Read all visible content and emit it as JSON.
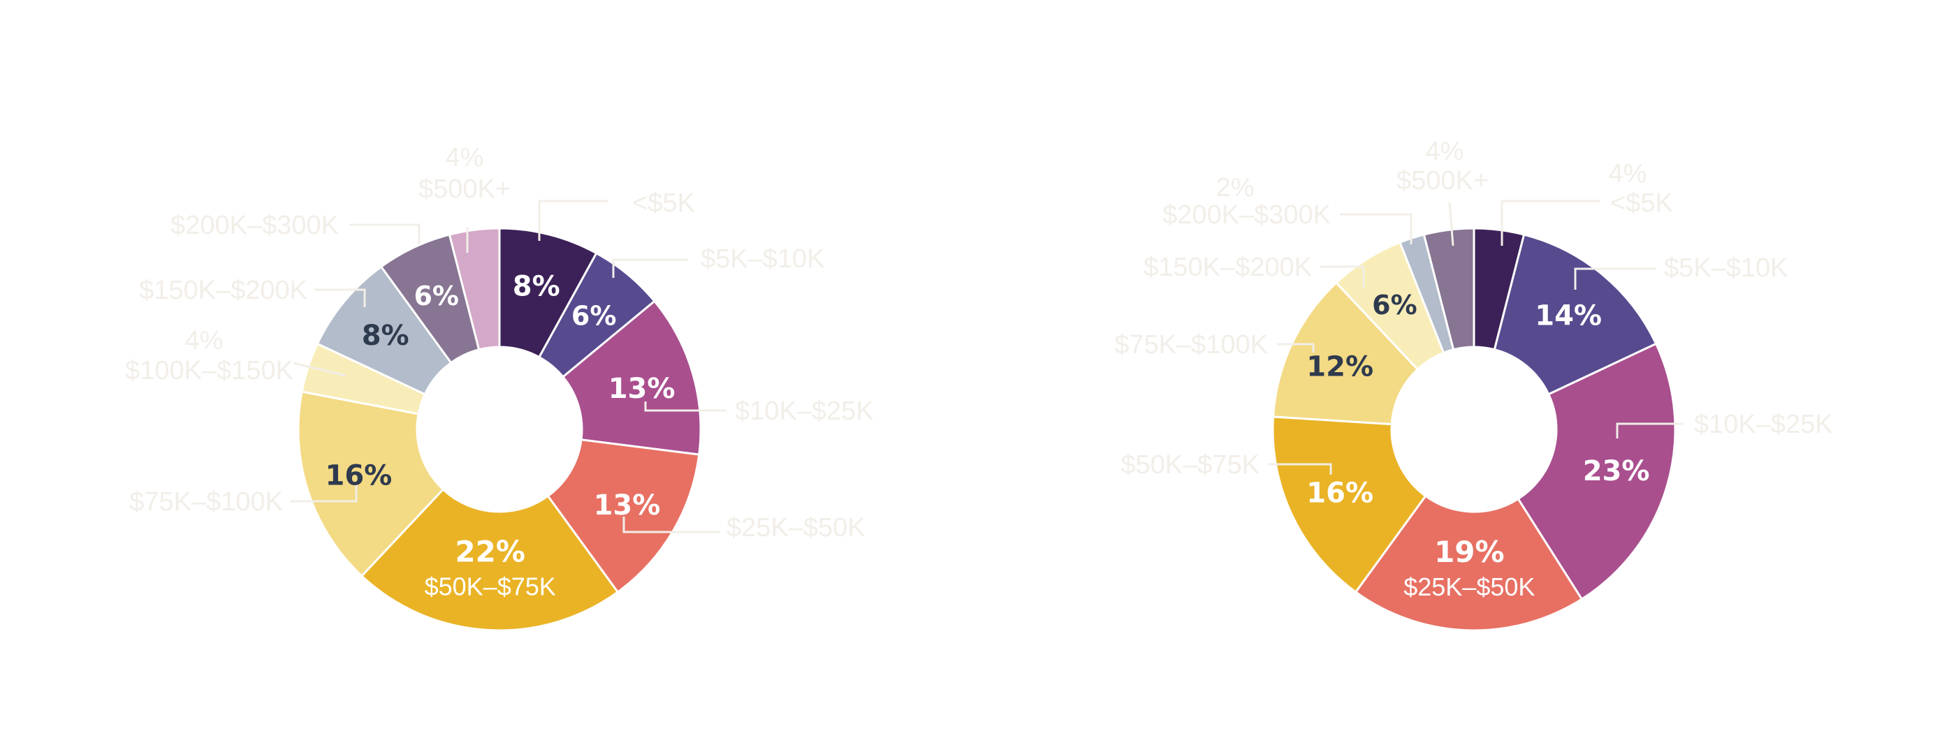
{
  "chart_data": [
    {
      "type": "donut",
      "categories": [
        "<$5K",
        "$5K–$10K",
        "$10K–$25K",
        "$25K–$50K",
        "$50K–$75K",
        "$75K–$100K",
        "$100K–$150K",
        "$150K–$200K",
        "$200K–$300K",
        "$500K+"
      ],
      "values": [
        8,
        6,
        13,
        13,
        22,
        16,
        4,
        8,
        6,
        4
      ],
      "value_labels": [
        "8%",
        "6%",
        "13%",
        "13%",
        "22%",
        "16%",
        "4%",
        "8%",
        "6%",
        "4%"
      ]
    },
    {
      "type": "donut",
      "categories": [
        "<$5K",
        "$5K–$10K",
        "$10K–$25K",
        "$25K–$50K",
        "$50K–$75K",
        "$75K–$100K",
        "$150K–$200K",
        "$200K–$300K",
        "$500K+"
      ],
      "values": [
        4,
        14,
        23,
        19,
        16,
        12,
        6,
        2,
        4
      ],
      "value_labels": [
        "4%",
        "14%",
        "23%",
        "19%",
        "16%",
        "12%",
        "6%",
        "2%",
        "4%"
      ]
    }
  ],
  "colors": {
    "dark_purple": "#3C2158",
    "indigo": "#574A8E",
    "magenta": "#A94F8E",
    "coral": "#E77063",
    "gold": "#EAB326",
    "light_yellow": "#F3DA84",
    "cream": "#F8EDB8",
    "slate": "#B3BCCA",
    "mauve": "#877593",
    "pink_lilac": "#D4A8C8",
    "ext_label_text": "#F2EEE8",
    "leader_line": "#F2EEE8"
  }
}
